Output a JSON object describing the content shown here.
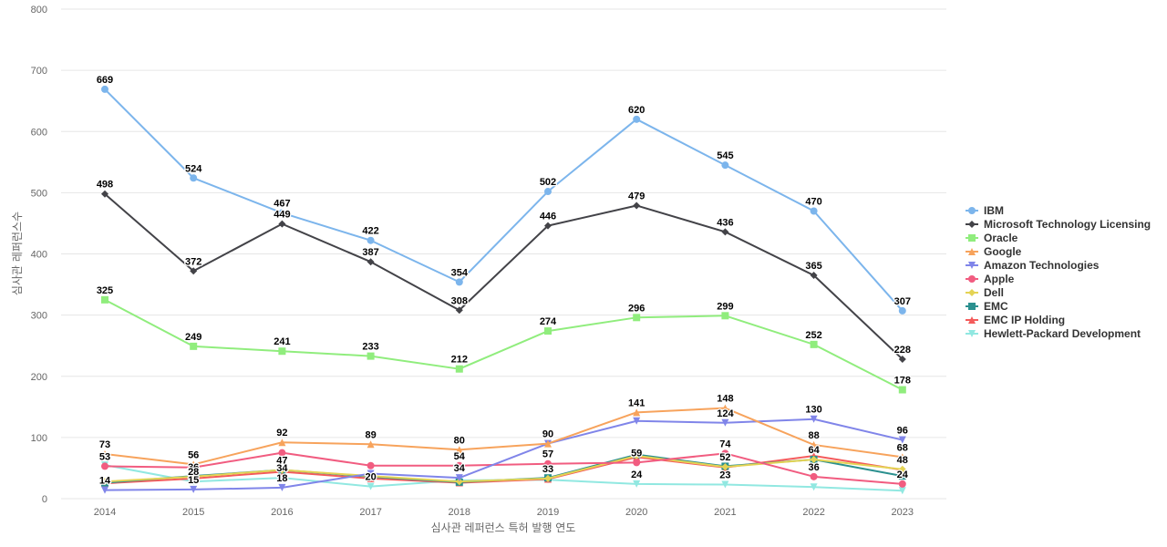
{
  "chart_data": {
    "type": "line",
    "title": "",
    "xlabel": "심사관 레퍼런스 특허 발행 연도",
    "ylabel": "심사관 레퍼런스수",
    "ylim": [
      0,
      800
    ],
    "yticks": [
      0,
      100,
      200,
      300,
      400,
      500,
      600,
      700,
      800
    ],
    "categories": [
      "2014",
      "2015",
      "2016",
      "2017",
      "2018",
      "2019",
      "2020",
      "2021",
      "2022",
      "2023"
    ],
    "grid": true,
    "legend_position": "right",
    "series": [
      {
        "name": "IBM",
        "color": "#7cb5ec",
        "marker": "circle",
        "values": [
          669,
          524,
          467,
          422,
          354,
          502,
          620,
          545,
          470,
          307
        ],
        "labels_shown": [
          true,
          true,
          true,
          true,
          true,
          true,
          true,
          true,
          true,
          true
        ]
      },
      {
        "name": "Microsoft Technology Licensing",
        "color": "#434348",
        "marker": "diamond",
        "values": [
          498,
          372,
          449,
          387,
          308,
          446,
          479,
          436,
          365,
          228
        ],
        "labels_shown": [
          true,
          true,
          true,
          true,
          true,
          true,
          true,
          true,
          true,
          true
        ]
      },
      {
        "name": "Oracle",
        "color": "#90ed7d",
        "marker": "square",
        "values": [
          325,
          249,
          241,
          233,
          212,
          274,
          296,
          299,
          252,
          178
        ],
        "labels_shown": [
          true,
          true,
          true,
          true,
          true,
          true,
          true,
          true,
          true,
          true
        ]
      },
      {
        "name": "Google",
        "color": "#f7a35c",
        "marker": "triangle",
        "values": [
          73,
          56,
          92,
          89,
          80,
          90,
          141,
          148,
          88,
          68
        ],
        "labels_shown": [
          true,
          true,
          true,
          true,
          true,
          true,
          true,
          true,
          true,
          true
        ]
      },
      {
        "name": "Amazon Technologies",
        "color": "#8085e9",
        "marker": "triangle-down",
        "values": [
          14,
          15,
          18,
          41,
          34,
          90,
          127,
          124,
          130,
          96
        ],
        "labels_shown": [
          true,
          true,
          true,
          false,
          true,
          false,
          false,
          true,
          true,
          true
        ]
      },
      {
        "name": "Apple",
        "color": "#f15c80",
        "marker": "circle",
        "values": [
          53,
          51,
          75,
          54,
          54,
          57,
          59,
          74,
          36,
          24
        ],
        "labels_shown": [
          true,
          false,
          false,
          false,
          true,
          true,
          true,
          true,
          true,
          true
        ]
      },
      {
        "name": "Dell",
        "color": "#e4d354",
        "marker": "diamond",
        "values": [
          28,
          36,
          47,
          37,
          28,
          33,
          70,
          52,
          64,
          48
        ],
        "labels_shown": [
          false,
          true,
          true,
          false,
          false,
          true,
          false,
          true,
          true,
          true
        ]
      },
      {
        "name": "EMC",
        "color": "#2b908f",
        "marker": "square",
        "values": [
          26,
          37,
          47,
          36,
          27,
          34,
          72,
          53,
          64,
          37
        ],
        "labels_shown": [
          false,
          false,
          false,
          false,
          false,
          false,
          false,
          false,
          false,
          false
        ]
      },
      {
        "name": "EMC IP Holding",
        "color": "#f45b5b",
        "marker": "triangle",
        "values": [
          25,
          33,
          44,
          33,
          26,
          32,
          68,
          51,
          70,
          47
        ],
        "labels_shown": [
          false,
          false,
          false,
          false,
          false,
          false,
          false,
          false,
          false,
          false
        ]
      },
      {
        "name": "Hewlett-Packard Development",
        "color": "#91e8e1",
        "marker": "triangle-down",
        "values": [
          55,
          28,
          34,
          20,
          30,
          31,
          24,
          23,
          19,
          13
        ],
        "labels_shown": [
          false,
          true,
          true,
          true,
          false,
          false,
          true,
          true,
          false,
          false
        ]
      }
    ]
  }
}
